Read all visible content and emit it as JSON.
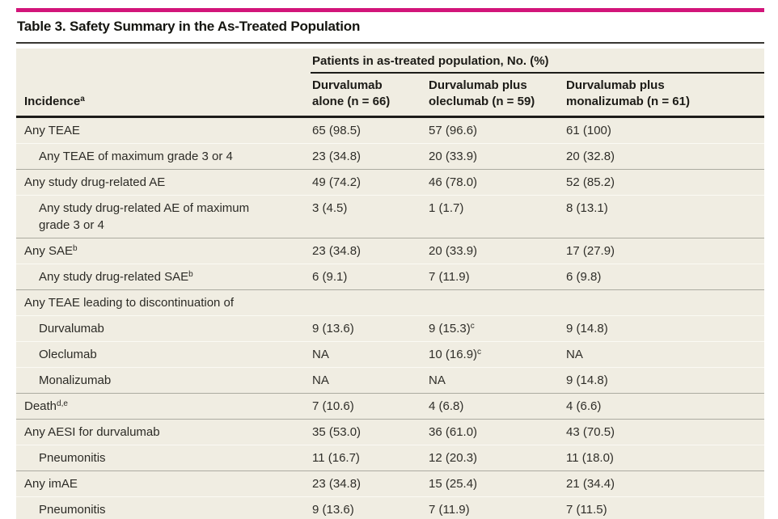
{
  "colors": {
    "accent_bar": "#d2157a",
    "table_background": "#f0ede2"
  },
  "table": {
    "title": "Table 3. Safety Summary in the As-Treated Population",
    "group_header": "Patients in as-treated population, No. (%)",
    "row_header": {
      "text": "Incidence",
      "sup": "a"
    },
    "columns": [
      "Durvalumab\nalone (n = 66)",
      "Durvalumab plus\noleclumab (n = 59)",
      "Durvalumab plus\nmonalizumab (n = 61)"
    ],
    "rows": [
      {
        "label": {
          "text": "Any TEAE"
        },
        "indent": false,
        "values": [
          {
            "text": "65 (98.5)"
          },
          {
            "text": "57 (96.6)"
          },
          {
            "text": "61 (100)"
          }
        ]
      },
      {
        "label": {
          "text": "Any TEAE of maximum grade 3 or 4"
        },
        "indent": true,
        "values": [
          {
            "text": "23 (34.8)"
          },
          {
            "text": "20 (33.9)"
          },
          {
            "text": "20 (32.8)"
          }
        ]
      },
      {
        "label": {
          "text": "Any study drug-related AE"
        },
        "indent": false,
        "values": [
          {
            "text": "49 (74.2)"
          },
          {
            "text": "46 (78.0)"
          },
          {
            "text": "52 (85.2)"
          }
        ]
      },
      {
        "label": {
          "text": "Any study drug-related AE of maximum\ngrade 3 or 4"
        },
        "indent": true,
        "values": [
          {
            "text": "3 (4.5)"
          },
          {
            "text": "1 (1.7)"
          },
          {
            "text": "8 (13.1)"
          }
        ]
      },
      {
        "label": {
          "text": "Any SAE",
          "sup": "b"
        },
        "indent": false,
        "values": [
          {
            "text": "23 (34.8)"
          },
          {
            "text": "20 (33.9)"
          },
          {
            "text": "17 (27.9)"
          }
        ]
      },
      {
        "label": {
          "text": "Any study drug-related SAE",
          "sup": "b"
        },
        "indent": true,
        "values": [
          {
            "text": "6 (9.1)"
          },
          {
            "text": "7 (11.9)"
          },
          {
            "text": "6 (9.8)"
          }
        ]
      },
      {
        "label": {
          "text": "Any TEAE leading to discontinuation of"
        },
        "indent": false,
        "values": [
          {
            "text": ""
          },
          {
            "text": ""
          },
          {
            "text": ""
          }
        ]
      },
      {
        "label": {
          "text": "Durvalumab"
        },
        "indent": true,
        "values": [
          {
            "text": "9 (13.6)"
          },
          {
            "text": "9 (15.3)",
            "sup": "c"
          },
          {
            "text": "9 (14.8)"
          }
        ]
      },
      {
        "label": {
          "text": "Oleclumab"
        },
        "indent": true,
        "values": [
          {
            "text": "NA"
          },
          {
            "text": "10 (16.9)",
            "sup": "c"
          },
          {
            "text": "NA"
          }
        ]
      },
      {
        "label": {
          "text": "Monalizumab"
        },
        "indent": true,
        "values": [
          {
            "text": "NA"
          },
          {
            "text": "NA"
          },
          {
            "text": "9 (14.8)"
          }
        ]
      },
      {
        "label": {
          "text": "Death",
          "sup": "d,e"
        },
        "indent": false,
        "values": [
          {
            "text": "7 (10.6)"
          },
          {
            "text": "4 (6.8)"
          },
          {
            "text": "4 (6.6)"
          }
        ]
      },
      {
        "label": {
          "text": "Any AESI for durvalumab"
        },
        "indent": false,
        "values": [
          {
            "text": "35 (53.0)"
          },
          {
            "text": "36 (61.0)"
          },
          {
            "text": "43 (70.5)"
          }
        ]
      },
      {
        "label": {
          "text": "Pneumonitis"
        },
        "indent": true,
        "values": [
          {
            "text": "11 (16.7)"
          },
          {
            "text": "12 (20.3)"
          },
          {
            "text": "11 (18.0)"
          }
        ]
      },
      {
        "label": {
          "text": "Any imAE"
        },
        "indent": false,
        "values": [
          {
            "text": "23 (34.8)"
          },
          {
            "text": "15 (25.4)"
          },
          {
            "text": "21 (34.4)"
          }
        ]
      },
      {
        "label": {
          "text": "Pneumonitis"
        },
        "indent": true,
        "values": [
          {
            "text": "9 (13.6)"
          },
          {
            "text": "7 (11.9)"
          },
          {
            "text": "7 (11.5)"
          }
        ]
      }
    ]
  }
}
